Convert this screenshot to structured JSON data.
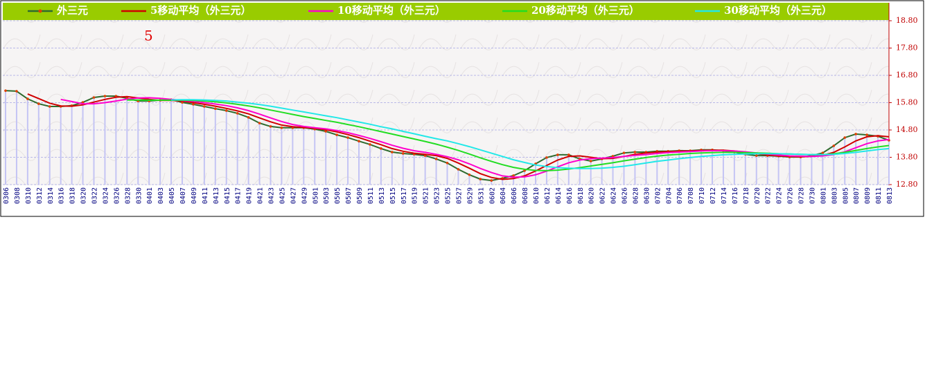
{
  "chart_data": {
    "type": "line",
    "annotation": "5",
    "categories": [
      "0306",
      "0308",
      "0310",
      "0312",
      "0314",
      "0316",
      "0318",
      "0320",
      "0322",
      "0324",
      "0326",
      "0328",
      "0330",
      "0401",
      "0403",
      "0405",
      "0407",
      "0409",
      "0411",
      "0413",
      "0415",
      "0417",
      "0419",
      "0421",
      "0423",
      "0425",
      "0427",
      "0429",
      "0501",
      "0503",
      "0505",
      "0507",
      "0509",
      "0511",
      "0513",
      "0515",
      "0517",
      "0519",
      "0521",
      "0523",
      "0525",
      "0527",
      "0529",
      "0531",
      "0602",
      "0604",
      "0606",
      "0608",
      "0610",
      "0612",
      "0614",
      "0616",
      "0618",
      "0620",
      "0622",
      "0624",
      "0626",
      "0628",
      "0630",
      "0702",
      "0704",
      "0706",
      "0708",
      "0710",
      "0712",
      "0714",
      "0716",
      "0718",
      "0720",
      "0722",
      "0724",
      "0726",
      "0728",
      "0730",
      "0801",
      "0803",
      "0805",
      "0807",
      "0809",
      "0811",
      "0813"
    ],
    "series": [
      {
        "name": "外三元",
        "color": "#2e6b2e",
        "marker_color": "#e04000",
        "bars": true,
        "bar_color": "#c4c4f4",
        "values": [
          16.24,
          16.22,
          15.94,
          15.76,
          15.66,
          15.66,
          15.69,
          15.81,
          15.99,
          16.04,
          16.04,
          15.96,
          15.86,
          15.86,
          15.89,
          15.91,
          15.81,
          15.74,
          15.66,
          15.58,
          15.51,
          15.41,
          15.26,
          15.05,
          14.93,
          14.88,
          14.88,
          14.88,
          14.83,
          14.75,
          14.62,
          14.52,
          14.39,
          14.27,
          14.12,
          13.99,
          13.94,
          13.91,
          13.86,
          13.74,
          13.59,
          13.36,
          13.16,
          13.0,
          12.95,
          13.03,
          13.13,
          13.31,
          13.56,
          13.79,
          13.89,
          13.89,
          13.74,
          13.66,
          13.74,
          13.84,
          13.96,
          13.99,
          13.99,
          14.02,
          14.02,
          14.04,
          14.04,
          14.07,
          14.07,
          14.04,
          13.99,
          13.91,
          13.86,
          13.86,
          13.84,
          13.81,
          13.81,
          13.86,
          13.96,
          14.22,
          14.52,
          14.65,
          14.62,
          14.57,
          14.42
        ]
      },
      {
        "name": "5移动平均（外三元）",
        "color": "#d00000",
        "values": [
          null,
          null,
          16.12,
          15.95,
          15.78,
          15.68,
          15.67,
          15.72,
          15.82,
          15.92,
          16.0,
          16.02,
          15.97,
          15.92,
          15.88,
          15.88,
          15.86,
          15.8,
          15.74,
          15.67,
          15.59,
          15.5,
          15.39,
          15.24,
          15.1,
          14.98,
          14.92,
          14.89,
          14.86,
          14.81,
          14.73,
          14.63,
          14.52,
          14.39,
          14.26,
          14.12,
          14.02,
          13.95,
          13.91,
          13.86,
          13.76,
          13.59,
          13.4,
          13.2,
          13.06,
          12.99,
          13.02,
          13.12,
          13.3,
          13.5,
          13.7,
          13.83,
          13.85,
          13.8,
          13.75,
          13.76,
          13.83,
          13.91,
          13.96,
          13.99,
          14.01,
          14.02,
          14.03,
          14.05,
          14.06,
          14.06,
          14.03,
          13.98,
          13.93,
          13.88,
          13.85,
          13.83,
          13.82,
          13.83,
          13.87,
          13.98,
          14.18,
          14.4,
          14.55,
          14.59,
          14.55
        ]
      },
      {
        "name": "10移动平均（外三元）",
        "color": "#ff00cc",
        "values": [
          null,
          null,
          null,
          null,
          null,
          15.92,
          15.84,
          15.76,
          15.76,
          15.8,
          15.86,
          15.93,
          15.97,
          15.98,
          15.96,
          15.92,
          15.88,
          15.85,
          15.8,
          15.75,
          15.69,
          15.61,
          15.51,
          15.38,
          15.24,
          15.11,
          15.0,
          14.93,
          14.88,
          14.84,
          14.78,
          14.7,
          14.6,
          14.49,
          14.37,
          14.24,
          14.13,
          14.04,
          13.98,
          13.91,
          13.82,
          13.71,
          13.56,
          13.39,
          13.24,
          13.12,
          13.07,
          13.08,
          13.16,
          13.29,
          13.45,
          13.6,
          13.7,
          13.75,
          13.77,
          13.79,
          13.83,
          13.87,
          13.9,
          13.94,
          13.97,
          13.99,
          14.01,
          14.03,
          14.04,
          14.04,
          14.03,
          14.0,
          13.96,
          13.92,
          13.88,
          13.85,
          13.84,
          13.83,
          13.85,
          13.9,
          14.0,
          14.15,
          14.3,
          14.4,
          14.45
        ]
      },
      {
        "name": "20移动平均（外三元）",
        "color": "#22dd22",
        "values": [
          null,
          null,
          null,
          null,
          null,
          null,
          null,
          null,
          null,
          null,
          null,
          15.9,
          15.9,
          15.89,
          15.89,
          15.89,
          15.89,
          15.88,
          15.86,
          15.83,
          15.79,
          15.74,
          15.68,
          15.61,
          15.53,
          15.45,
          15.37,
          15.29,
          15.22,
          15.15,
          15.08,
          15.0,
          14.92,
          14.83,
          14.74,
          14.65,
          14.56,
          14.47,
          14.38,
          14.28,
          14.17,
          14.05,
          13.92,
          13.78,
          13.65,
          13.53,
          13.43,
          13.36,
          13.32,
          13.31,
          13.33,
          13.37,
          13.42,
          13.48,
          13.54,
          13.6,
          13.67,
          13.73,
          13.79,
          13.84,
          13.88,
          13.91,
          13.94,
          13.96,
          13.97,
          13.98,
          13.98,
          13.97,
          13.96,
          13.95,
          13.93,
          13.92,
          13.91,
          13.9,
          13.9,
          13.93,
          13.98,
          14.05,
          14.12,
          14.18,
          14.23
        ]
      },
      {
        "name": "30移动平均（外三元）",
        "color": "#22e8e8",
        "values": [
          null,
          null,
          null,
          null,
          null,
          null,
          null,
          null,
          null,
          null,
          null,
          null,
          null,
          null,
          null,
          15.9,
          15.91,
          15.91,
          15.9,
          15.88,
          15.86,
          15.82,
          15.78,
          15.73,
          15.67,
          15.6,
          15.53,
          15.46,
          15.39,
          15.32,
          15.25,
          15.17,
          15.09,
          15.01,
          14.92,
          14.84,
          14.75,
          14.66,
          14.57,
          14.48,
          14.4,
          14.3,
          14.19,
          14.07,
          13.95,
          13.83,
          13.71,
          13.61,
          13.52,
          13.46,
          13.42,
          13.4,
          13.39,
          13.39,
          13.4,
          13.43,
          13.47,
          13.53,
          13.59,
          13.65,
          13.7,
          13.75,
          13.79,
          13.83,
          13.86,
          13.89,
          13.91,
          13.92,
          13.93,
          13.93,
          13.93,
          13.92,
          13.91,
          13.9,
          13.9,
          13.91,
          13.94,
          13.98,
          14.03,
          14.08,
          14.12
        ]
      }
    ],
    "ylim": [
      12.8,
      18.8
    ],
    "yticks": [
      {
        "value": 12.8,
        "label": "12.80"
      },
      {
        "value": 13.8,
        "label": "13.80"
      },
      {
        "value": 14.8,
        "label": "14.80"
      },
      {
        "value": 15.8,
        "label": "15.80"
      },
      {
        "value": 16.8,
        "label": "16.80"
      },
      {
        "value": 17.8,
        "label": "17.80"
      },
      {
        "value": 18.8,
        "label": "18.80"
      }
    ],
    "grid": true,
    "legend": "top"
  }
}
